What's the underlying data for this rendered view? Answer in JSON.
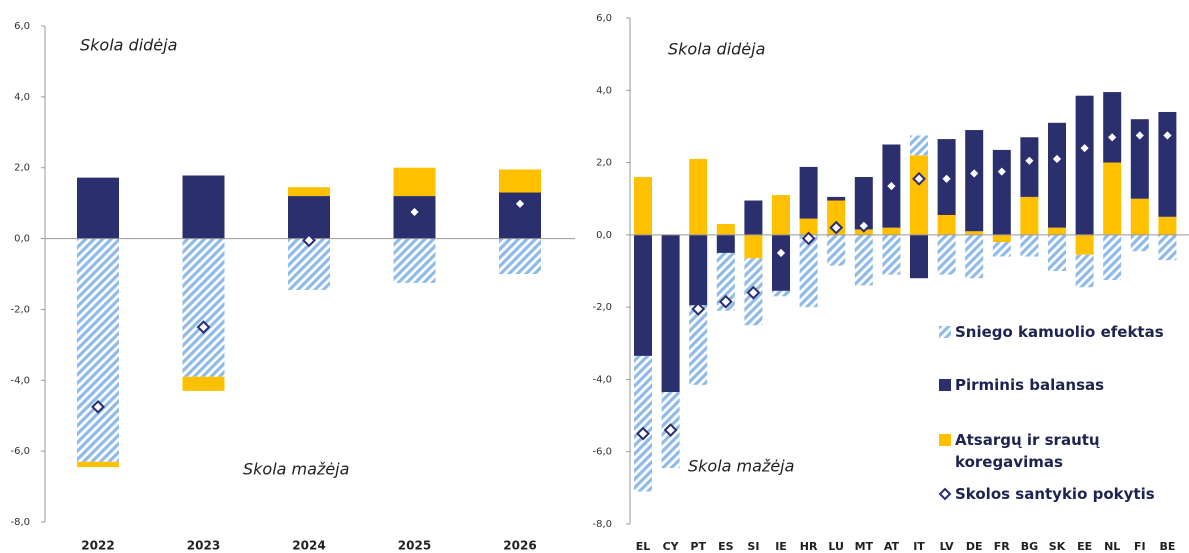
{
  "chart_data": [
    {
      "type": "bar",
      "categories": [
        "2022",
        "2023",
        "2024",
        "2025",
        "2026"
      ],
      "series": [
        {
          "color": "#8fbbea",
          "hatch": true,
          "values": [
            -6.3,
            -3.9,
            -1.45,
            -1.25,
            -1.0
          ]
        },
        {
          "color": "#2b2f6e",
          "values": [
            1.72,
            1.78,
            1.2,
            1.2,
            1.3
          ]
        },
        {
          "color": "#ffc000",
          "values": [
            -0.15,
            -0.4,
            0.25,
            0.8,
            0.65
          ]
        },
        {
          "color": "#2b2f6e",
          "marker": "diamond",
          "values": [
            -4.75,
            -2.5,
            -0.05,
            0.75,
            0.98
          ]
        }
      ],
      "ylim": [
        -8,
        6
      ],
      "yticks": [
        {
          "value": -8,
          "label": "-8,0"
        },
        {
          "value": -6,
          "label": "-6,0"
        },
        {
          "value": -4,
          "label": "-4,0"
        },
        {
          "value": -2,
          "label": "-2,0"
        },
        {
          "value": 0,
          "label": "0,0"
        },
        {
          "value": 2,
          "label": "2,0"
        },
        {
          "value": 4,
          "label": "4,0"
        },
        {
          "value": 6,
          "label": "6,0"
        }
      ],
      "annotations": [
        "Skola didėja",
        "Skola mažėja"
      ]
    },
    {
      "type": "bar",
      "categories": [
        "EL",
        "CY",
        "PT",
        "ES",
        "SI",
        "IE",
        "HR",
        "LU",
        "MT",
        "AT",
        "IT",
        "LV",
        "DE",
        "FR",
        "BG",
        "SK",
        "EE",
        "NL",
        "FI",
        "BE"
      ],
      "series": [
        {
          "name": "Sniego kamuolio efektas",
          "color": "#8fbbea",
          "hatch": true,
          "values": [
            -3.75,
            -2.1,
            -2.2,
            -1.6,
            -1.85,
            -0.15,
            -2.0,
            -0.85,
            -1.4,
            -1.1,
            0.55,
            -1.1,
            -1.2,
            -0.4,
            -0.6,
            -1.0,
            -0.9,
            -1.25,
            -0.45,
            -0.7
          ]
        },
        {
          "name": "Pirminis balansas",
          "color": "#2b2f6e",
          "values": [
            -3.35,
            -4.35,
            -1.95,
            -0.5,
            0.95,
            -1.55,
            1.43,
            0.1,
            1.45,
            2.3,
            -1.2,
            2.1,
            2.8,
            2.35,
            1.65,
            2.9,
            3.85,
            1.95,
            2.2,
            2.9
          ]
        },
        {
          "name": "Atsargų ir srautų koregavimas",
          "color": "#ffc000",
          "values": [
            1.6,
            0,
            2.1,
            0.3,
            -0.65,
            1.1,
            0.45,
            0.95,
            0.15,
            0.2,
            2.2,
            0.55,
            0.1,
            -0.2,
            1.05,
            0.2,
            -0.55,
            2.0,
            1.0,
            0.5
          ]
        },
        {
          "name": "Skolos santykio pokytis",
          "color": "#2b2f6e",
          "marker": "diamond",
          "values": [
            -5.5,
            -5.4,
            -2.05,
            -1.85,
            -1.6,
            -0.5,
            -0.1,
            0.2,
            0.25,
            1.35,
            1.55,
            1.55,
            1.7,
            1.75,
            2.05,
            2.1,
            2.4,
            2.7,
            2.75,
            2.75
          ]
        }
      ],
      "ylim": [
        -8,
        6
      ],
      "yticks": [
        {
          "value": -8,
          "label": "-8,0"
        },
        {
          "value": -6,
          "label": "-6,0"
        },
        {
          "value": -4,
          "label": "-4,0"
        },
        {
          "value": -2,
          "label": "-2,0"
        },
        {
          "value": 0,
          "label": "0,0"
        },
        {
          "value": 2,
          "label": "2,0"
        },
        {
          "value": 4,
          "label": "4,0"
        },
        {
          "value": 6,
          "label": "6,0"
        }
      ],
      "annotations": [
        "Skola didėja",
        "Skola mažėja"
      ],
      "legend": "lower right"
    }
  ]
}
